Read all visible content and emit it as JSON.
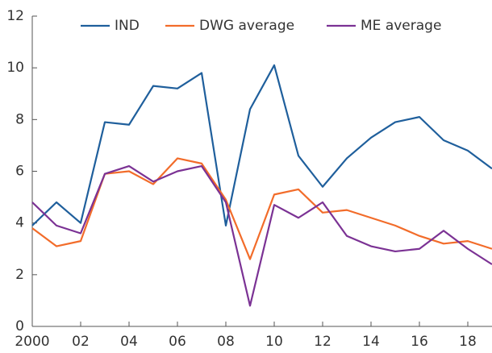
{
  "chart_data": {
    "type": "line",
    "x": [
      2000,
      2001,
      2002,
      2003,
      2004,
      2005,
      2006,
      2007,
      2008,
      2009,
      2010,
      2011,
      2012,
      2013,
      2014,
      2015,
      2016,
      2017,
      2018,
      2019
    ],
    "series": [
      {
        "name": "IND",
        "color": "#1f5f9c",
        "values": [
          3.9,
          4.8,
          4.0,
          7.9,
          7.8,
          9.3,
          9.2,
          9.8,
          3.9,
          8.4,
          10.1,
          6.6,
          5.4,
          6.5,
          7.3,
          7.9,
          8.1,
          7.2,
          6.8,
          6.1
        ]
      },
      {
        "name": "DWG average",
        "color": "#f26c2a",
        "values": [
          3.8,
          3.1,
          3.3,
          5.9,
          6.0,
          5.5,
          6.5,
          6.3,
          4.9,
          2.6,
          5.1,
          5.3,
          4.4,
          4.5,
          4.2,
          3.9,
          3.5,
          3.2,
          3.3,
          3.0
        ]
      },
      {
        "name": "ME average",
        "color": "#7b3294",
        "values": [
          4.8,
          3.9,
          3.6,
          5.9,
          6.2,
          5.6,
          6.0,
          6.2,
          4.8,
          0.8,
          4.7,
          4.2,
          4.8,
          3.5,
          3.1,
          2.9,
          3.0,
          3.7,
          3.0,
          2.4
        ]
      }
    ],
    "xlim": [
      2000,
      2019
    ],
    "xticks": [
      {
        "value": 2000,
        "label": "2000"
      },
      {
        "value": 2002,
        "label": "02"
      },
      {
        "value": 2004,
        "label": "04"
      },
      {
        "value": 2006,
        "label": "06"
      },
      {
        "value": 2008,
        "label": "08"
      },
      {
        "value": 2010,
        "label": "10"
      },
      {
        "value": 2012,
        "label": "12"
      },
      {
        "value": 2014,
        "label": "14"
      },
      {
        "value": 2016,
        "label": "16"
      },
      {
        "value": 2018,
        "label": "18"
      }
    ],
    "ylim": [
      0,
      12
    ],
    "yticks": [
      0,
      2,
      4,
      6,
      8,
      10,
      12
    ],
    "legend": "top"
  }
}
